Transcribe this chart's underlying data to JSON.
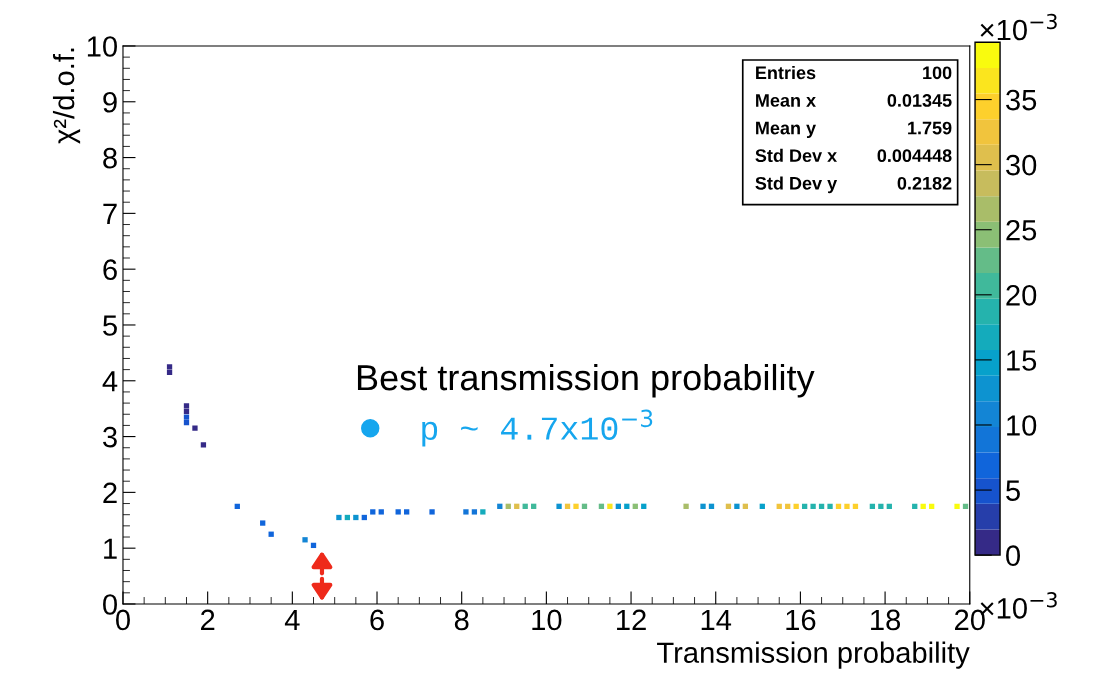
{
  "chart_data": {
    "type": "scatter",
    "xlabel": "Transmission probability",
    "ylabel": "χ²/d.o.f.",
    "legend_title": "Best transmission probability",
    "marker": "square",
    "grid": false,
    "xlim": [
      0,
      20
    ],
    "xticks": [
      0,
      2,
      4,
      6,
      8,
      10,
      12,
      14,
      16,
      18,
      20
    ],
    "ylim": [
      0,
      10
    ],
    "yticks": [
      0,
      1,
      2,
      3,
      4,
      5,
      6,
      7,
      8,
      9,
      10
    ],
    "clim": [
      0,
      39.4
    ],
    "cticks": [
      0,
      5,
      10,
      15,
      20,
      25,
      30,
      35
    ],
    "series": [
      {
        "x": [
          1.1,
          1.1,
          1.5,
          1.5,
          1.5,
          1.5,
          1.7,
          1.9,
          2.7,
          3.3,
          3.5,
          4.3,
          4.5,
          5.1,
          5.3,
          5.5,
          5.7,
          5.9,
          6.1,
          6.5,
          6.7,
          7.3,
          8.1,
          8.3,
          8.5,
          8.9,
          9.1,
          9.3,
          9.5,
          9.7,
          10.3,
          10.5,
          10.7,
          10.9,
          11.3,
          11.5,
          11.7,
          11.9,
          12.1,
          12.3,
          13.3,
          13.7,
          13.9,
          14.3,
          14.5,
          14.7,
          15.1,
          15.5,
          15.7,
          15.9,
          16.1,
          16.3,
          16.5,
          16.7,
          16.9,
          17.1,
          17.3,
          17.7,
          17.9,
          18.1,
          18.7,
          18.9,
          19.1,
          19.7,
          19.9
        ],
        "values": [
          4.25,
          4.15,
          3.55,
          3.45,
          3.35,
          3.25,
          3.15,
          2.85,
          1.75,
          1.45,
          1.25,
          1.15,
          1.05,
          1.55,
          1.55,
          1.55,
          1.55,
          1.65,
          1.65,
          1.65,
          1.65,
          1.65,
          1.65,
          1.65,
          1.65,
          1.75,
          1.75,
          1.75,
          1.75,
          1.75,
          1.75,
          1.75,
          1.75,
          1.75,
          1.75,
          1.75,
          1.75,
          1.75,
          1.75,
          1.75,
          1.75,
          1.75,
          1.75,
          1.75,
          1.75,
          1.75,
          1.75,
          1.75,
          1.75,
          1.75,
          1.75,
          1.75,
          1.75,
          1.75,
          1.75,
          1.75,
          1.75,
          1.75,
          1.75,
          1.75,
          1.75,
          1.75,
          1.75,
          1.75,
          1.75
        ],
        "cvalues": [
          1,
          1,
          1,
          1,
          5,
          5,
          1,
          1,
          6,
          6,
          6,
          10,
          6,
          12,
          17,
          12,
          6,
          6,
          6,
          6,
          6,
          7,
          9,
          9,
          17,
          10,
          27,
          31,
          20,
          20,
          12,
          32,
          34,
          23,
          23,
          37,
          13,
          14,
          25,
          14,
          26,
          13,
          13,
          30,
          13,
          30,
          14,
          32,
          32,
          34,
          18,
          18,
          18,
          18,
          35,
          35,
          35,
          19,
          19,
          19,
          19,
          39,
          39,
          39,
          22
        ]
      }
    ],
    "annotations": [
      "×10$^{−3}$",
      "×10$^{−3}$",
      "Entries 100",
      "Mean x 0.01345",
      "Mean y 1.759",
      "Std Dev x 0.004448",
      "Std Dev y 0.2182",
      "p ~ 4.7x10$^{−3}$"
    ]
  }
}
